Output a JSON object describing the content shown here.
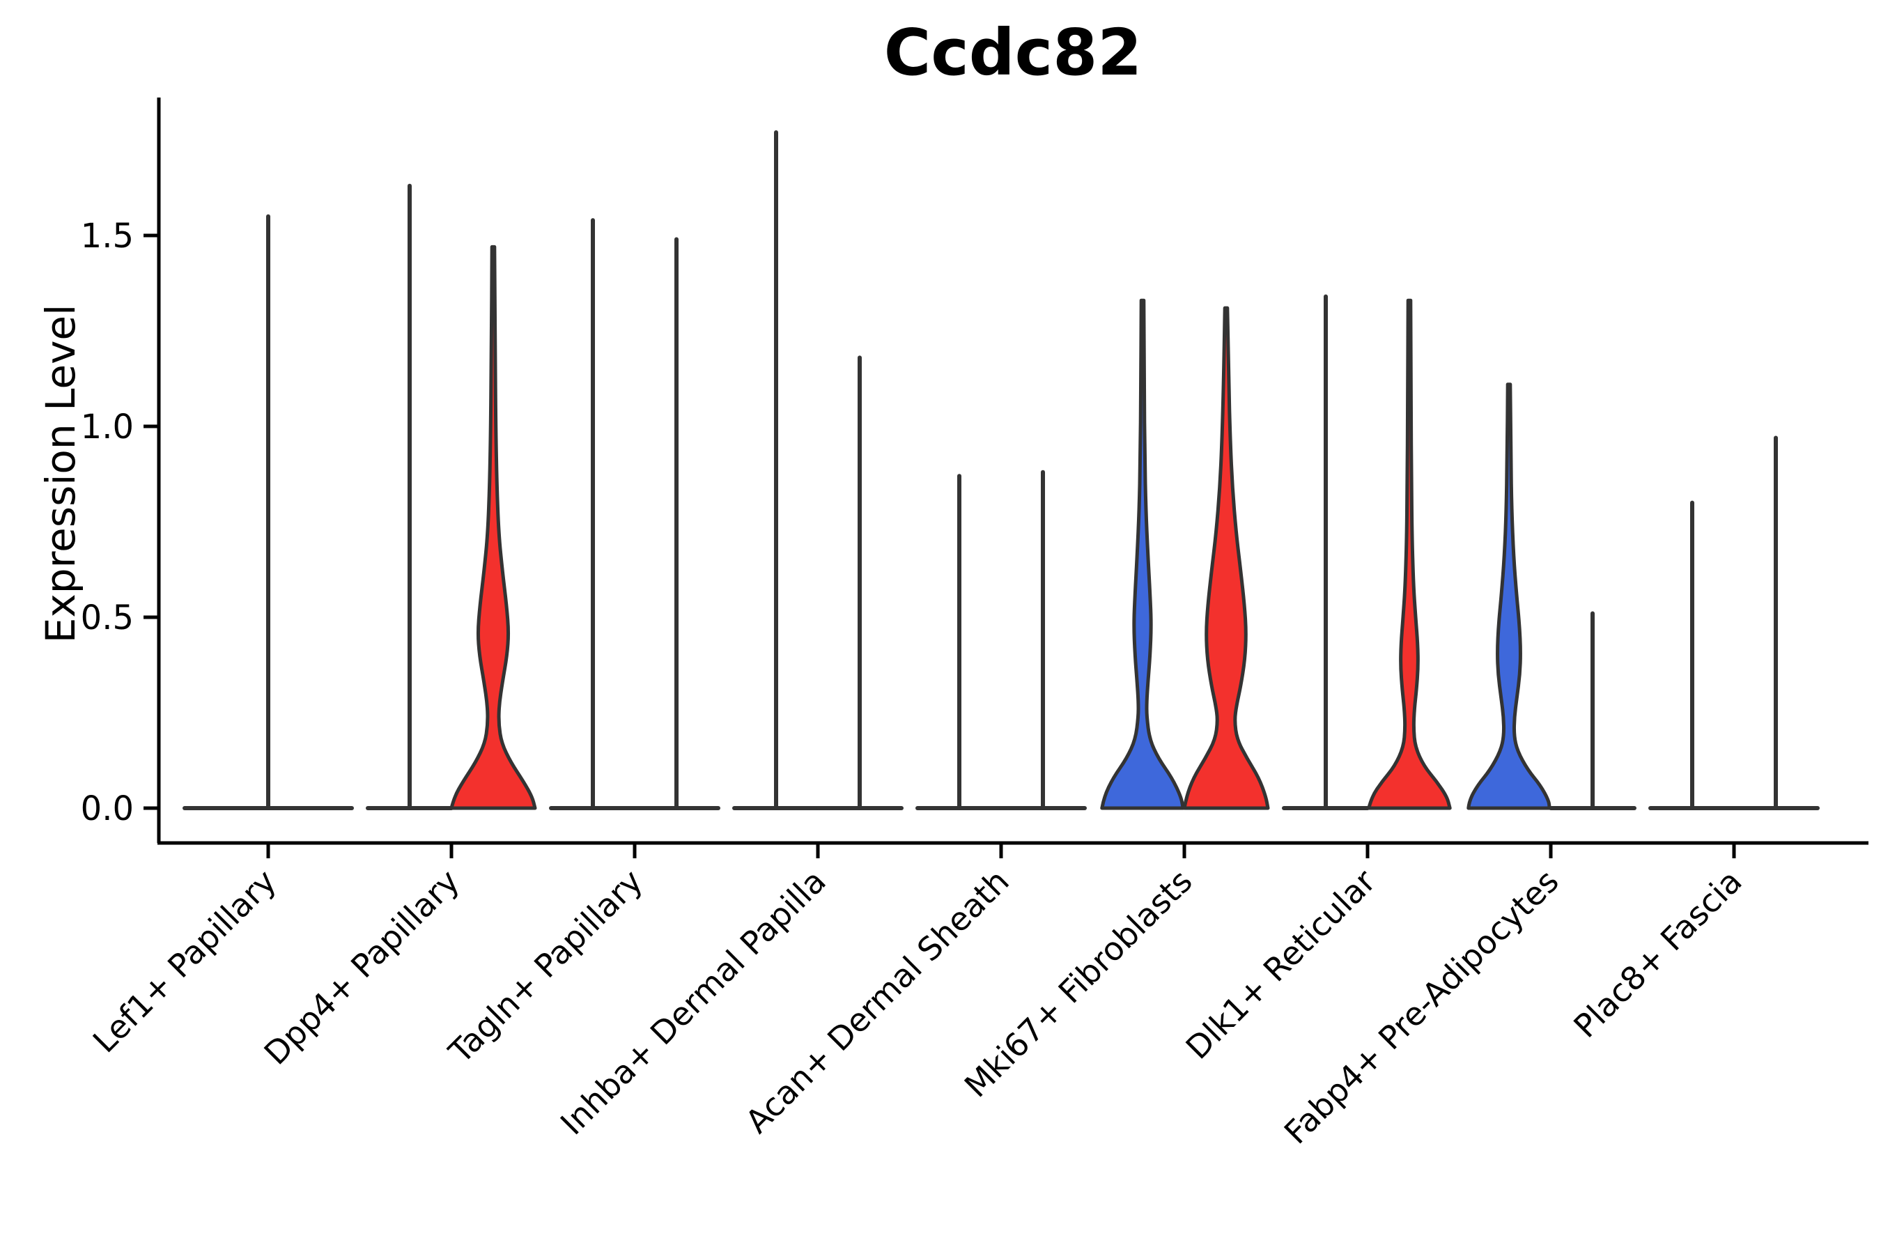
{
  "chart_data": {
    "type": "violin",
    "title": "Ccdc82",
    "ylabel": "Expression Level",
    "xlabel": "",
    "ylim": [
      0,
      1.85
    ],
    "grid": false,
    "legend": false,
    "y_ticks": [
      {
        "label": "0.0",
        "value": 0.0
      },
      {
        "label": "0.5",
        "value": 0.5
      },
      {
        "label": "1.0",
        "value": 1.0
      },
      {
        "label": "1.5",
        "value": 1.5
      }
    ],
    "categories": [
      "Lef1+ Papillary",
      "Dpp4+ Papillary",
      "Tagln+ Papillary",
      "Inhba+ Dermal Papilla",
      "Acan+ Dermal Sheath",
      "Mki67+ Fibroblasts",
      "Dlk1+ Reticular",
      "Fabp4+ Pre-Adipocytes",
      "Plac8+ Fascia"
    ],
    "colors": {
      "red": "#F3312D",
      "blue": "#3E68DB",
      "outline": "#333333",
      "axis": "#000000"
    },
    "groups": [
      {
        "category": "Lef1+ Papillary",
        "violins": [
          {
            "side": "full",
            "fill": "none",
            "max": 1.55
          }
        ]
      },
      {
        "category": "Dpp4+ Papillary",
        "violins": [
          {
            "side": "left",
            "fill": "none",
            "max": 1.63
          },
          {
            "side": "right",
            "fill": "red",
            "max": 1.47,
            "profile": [
              [
                1.47,
                0.03
              ],
              [
                1.2,
                0.045
              ],
              [
                1.0,
                0.06
              ],
              [
                0.85,
                0.085
              ],
              [
                0.72,
                0.13
              ],
              [
                0.62,
                0.22
              ],
              [
                0.53,
                0.32
              ],
              [
                0.46,
                0.37
              ],
              [
                0.4,
                0.33
              ],
              [
                0.33,
                0.22
              ],
              [
                0.27,
                0.14
              ],
              [
                0.22,
                0.13
              ],
              [
                0.17,
                0.2
              ],
              [
                0.12,
                0.42
              ],
              [
                0.07,
                0.72
              ],
              [
                0.03,
                0.93
              ],
              [
                0.0,
                1.0
              ]
            ]
          }
        ]
      },
      {
        "category": "Tagln+ Papillary",
        "violins": [
          {
            "side": "left",
            "fill": "none",
            "max": 1.54
          },
          {
            "side": "right",
            "fill": "none",
            "max": 1.49
          }
        ]
      },
      {
        "category": "Inhba+ Dermal Papilla",
        "violins": [
          {
            "side": "left",
            "fill": "none",
            "max": 1.77
          },
          {
            "side": "right",
            "fill": "none",
            "max": 1.18
          }
        ]
      },
      {
        "category": "Acan+ Dermal Sheath",
        "violins": [
          {
            "side": "left",
            "fill": "none",
            "max": 0.87
          },
          {
            "side": "right",
            "fill": "none",
            "max": 0.88
          }
        ]
      },
      {
        "category": "Mki67+ Fibroblasts",
        "violins": [
          {
            "side": "left",
            "fill": "blue",
            "max": 1.33,
            "profile": [
              [
                1.33,
                0.03
              ],
              [
                1.1,
                0.04
              ],
              [
                0.92,
                0.055
              ],
              [
                0.78,
                0.08
              ],
              [
                0.66,
                0.13
              ],
              [
                0.56,
                0.18
              ],
              [
                0.48,
                0.21
              ],
              [
                0.4,
                0.18
              ],
              [
                0.33,
                0.13
              ],
              [
                0.28,
                0.1
              ],
              [
                0.24,
                0.1
              ],
              [
                0.18,
                0.17
              ],
              [
                0.13,
                0.38
              ],
              [
                0.08,
                0.7
              ],
              [
                0.03,
                0.92
              ],
              [
                0.0,
                0.97
              ]
            ]
          },
          {
            "side": "right",
            "fill": "red",
            "max": 1.31,
            "profile": [
              [
                1.31,
                0.03
              ],
              [
                1.12,
                0.06
              ],
              [
                0.96,
                0.1
              ],
              [
                0.84,
                0.15
              ],
              [
                0.72,
                0.24
              ],
              [
                0.62,
                0.35
              ],
              [
                0.53,
                0.44
              ],
              [
                0.46,
                0.48
              ],
              [
                0.39,
                0.45
              ],
              [
                0.32,
                0.35
              ],
              [
                0.27,
                0.25
              ],
              [
                0.23,
                0.2
              ],
              [
                0.18,
                0.26
              ],
              [
                0.13,
                0.5
              ],
              [
                0.08,
                0.78
              ],
              [
                0.03,
                0.95
              ],
              [
                0.0,
                1.0
              ]
            ]
          }
        ]
      },
      {
        "category": "Dlk1+ Reticular",
        "violins": [
          {
            "side": "left",
            "fill": "none",
            "max": 1.34
          },
          {
            "side": "right",
            "fill": "red",
            "max": 1.33,
            "profile": [
              [
                1.33,
                0.03
              ],
              [
                1.05,
                0.04
              ],
              [
                0.85,
                0.05
              ],
              [
                0.7,
                0.065
              ],
              [
                0.58,
                0.1
              ],
              [
                0.5,
                0.15
              ],
              [
                0.43,
                0.2
              ],
              [
                0.37,
                0.21
              ],
              [
                0.31,
                0.17
              ],
              [
                0.26,
                0.12
              ],
              [
                0.21,
                0.1
              ],
              [
                0.16,
                0.14
              ],
              [
                0.11,
                0.35
              ],
              [
                0.07,
                0.65
              ],
              [
                0.03,
                0.9
              ],
              [
                0.0,
                0.97
              ]
            ]
          }
        ]
      },
      {
        "category": "Fabp4+ Pre-Adipocytes",
        "violins": [
          {
            "side": "left",
            "fill": "blue",
            "max": 1.11,
            "profile": [
              [
                1.11,
                0.03
              ],
              [
                0.92,
                0.045
              ],
              [
                0.78,
                0.065
              ],
              [
                0.66,
                0.11
              ],
              [
                0.56,
                0.18
              ],
              [
                0.48,
                0.25
              ],
              [
                0.41,
                0.28
              ],
              [
                0.35,
                0.26
              ],
              [
                0.29,
                0.19
              ],
              [
                0.24,
                0.13
              ],
              [
                0.19,
                0.12
              ],
              [
                0.15,
                0.2
              ],
              [
                0.1,
                0.45
              ],
              [
                0.06,
                0.75
              ],
              [
                0.02,
                0.95
              ],
              [
                0.0,
                0.97
              ]
            ]
          },
          {
            "side": "right",
            "fill": "none",
            "max": 0.51
          }
        ]
      },
      {
        "category": "Plac8+ Fascia",
        "violins": [
          {
            "side": "left",
            "fill": "none",
            "max": 0.8
          },
          {
            "side": "right",
            "fill": "none",
            "max": 0.97
          }
        ]
      }
    ]
  }
}
